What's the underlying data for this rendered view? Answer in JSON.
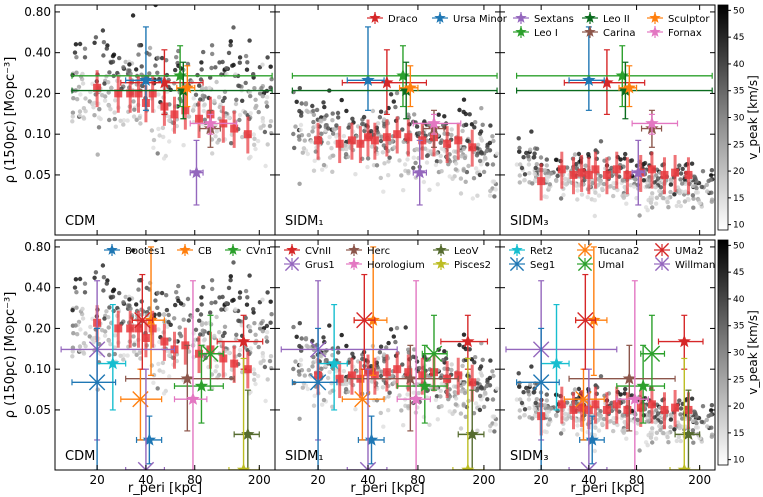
{
  "chart_data": {
    "type": "scatter",
    "y_axis": {
      "label": "ρ (150pc) [M⊙pc⁻³]",
      "log_range": [
        0.018,
        0.9
      ],
      "ticks": [
        0.05,
        0.1,
        0.2,
        0.4,
        0.8
      ],
      "tick_labels": [
        "0.05",
        "0.10",
        "0.20",
        "0.40",
        "0.80"
      ]
    },
    "x_axis": {
      "label": "r_peri [kpc]",
      "log_range": [
        11,
        250
      ],
      "ticks": [
        20,
        40,
        80,
        200
      ],
      "tick_labels": [
        "20",
        "40",
        "80",
        "200"
      ]
    },
    "colorbar": {
      "label": "v_peak [km/s]",
      "range": [
        9,
        51
      ],
      "ticks": [
        10,
        15,
        20,
        25,
        30,
        35,
        40,
        45,
        50
      ],
      "tick_labels": [
        "10",
        "15",
        "20",
        "25",
        "30",
        "35",
        "40",
        "45",
        "50"
      ]
    },
    "panel_titles": [
      "CDM",
      "SIDM₁",
      "SIDM₃",
      "CDM",
      "SIDM₁",
      "SIDM₃"
    ],
    "classical_dwarfs": [
      {
        "name": "Draco",
        "color": "#d62728",
        "marker": "star",
        "rperi": 52,
        "rperi_lo": 28,
        "rperi_hi": 90,
        "rho": {
          "CDM": 0.24,
          "SIDM1": 0.24,
          "SIDM3": 0.24
        },
        "rho_lo": 0.14,
        "rho_hi": 0.42
      },
      {
        "name": "Ursa Minor",
        "color": "#1f77b4",
        "marker": "star",
        "rperi": 40,
        "rperi_lo": 30,
        "rperi_hi": 50,
        "rho": {
          "CDM": 0.25,
          "SIDM1": 0.25,
          "SIDM3": 0.25
        },
        "rho_lo": 0.15,
        "rho_hi": 0.62
      },
      {
        "name": "Sextans",
        "color": "#9467bd",
        "marker": "star",
        "rperi": 82,
        "rperi_lo": 75,
        "rperi_hi": 90,
        "rho": {
          "CDM": 0.052,
          "SIDM1": 0.052,
          "SIDM3": 0.052
        },
        "rho_lo": 0.03,
        "rho_hi": 0.09
      },
      {
        "name": "Leo I",
        "color": "#2ca02c",
        "marker": "star",
        "rperi": 65,
        "rperi_lo": 14,
        "rperi_hi": 240,
        "rho": {
          "CDM": 0.27,
          "SIDM1": 0.27,
          "SIDM3": 0.27
        },
        "rho_lo": 0.16,
        "rho_hi": 0.45
      },
      {
        "name": "Leo II",
        "color": "#0a6b1e",
        "marker": "star",
        "rperi": 68,
        "rperi_lo": 14,
        "rperi_hi": 240,
        "rho": {
          "CDM": 0.21,
          "SIDM1": 0.21,
          "SIDM3": 0.21
        },
        "rho_lo": 0.13,
        "rho_hi": 0.34
      },
      {
        "name": "Carina",
        "color": "#8c564b",
        "marker": "star",
        "rperi": 100,
        "rperi_lo": 86,
        "rperi_hi": 115,
        "rho": {
          "CDM": 0.11,
          "SIDM1": 0.11,
          "SIDM3": 0.11
        },
        "rho_lo": 0.08,
        "rho_hi": 0.15
      },
      {
        "name": "Sculptor",
        "color": "#ff7f0e",
        "marker": "star",
        "rperi": 72,
        "rperi_lo": 62,
        "rperi_hi": 80,
        "rho": {
          "CDM": 0.22,
          "SIDM1": 0.22,
          "SIDM3": 0.22
        },
        "rho_lo": 0.16,
        "rho_hi": 0.32
      },
      {
        "name": "Fornax",
        "color": "#e377c2",
        "marker": "star",
        "rperi": 100,
        "rperi_lo": 75,
        "rperi_hi": 145,
        "rho": {
          "CDM": 0.12,
          "SIDM1": 0.12,
          "SIDM3": 0.12
        },
        "rho_lo": 0.1,
        "rho_hi": 0.14
      }
    ],
    "ultrafaint_dwarfs": [
      {
        "name": "Bootes1",
        "color": "#1f77b4",
        "marker": "star",
        "rperi": 42,
        "rperi_lo": 35,
        "rperi_hi": 50,
        "rho": 0.03,
        "rho_lo": 0.02,
        "rho_hi": 0.045
      },
      {
        "name": "CB",
        "color": "#ff7f0e",
        "marker": "star",
        "rperi": 43,
        "rperi_lo": 33,
        "rperi_hi": 52,
        "rho": 0.23,
        "rho_lo": 0.09,
        "rho_hi": 0.8
      },
      {
        "name": "CVn1",
        "color": "#2ca02c",
        "marker": "star",
        "rperi": 88,
        "rperi_lo": 60,
        "rperi_hi": 120,
        "rho": 0.075,
        "rho_lo": 0.04,
        "rho_hi": 0.15
      },
      {
        "name": "CVnII",
        "color": "#d62728",
        "marker": "star",
        "rperi": 160,
        "rperi_lo": 110,
        "rperi_hi": 210,
        "rho": 0.16,
        "rho_lo": 0.1,
        "rho_hi": 0.25
      },
      {
        "name": "Grus1",
        "color": "#9467bd",
        "marker": "cross",
        "rperi": 20,
        "rperi_lo": 12,
        "rperi_hi": 60,
        "rho": 0.14,
        "rho_lo": 0.03,
        "rho_hi": 0.45
      },
      {
        "name": "Herc",
        "color": "#8c564b",
        "marker": "star",
        "rperi": 72,
        "rperi_lo": 30,
        "rperi_hi": 140,
        "rho": 0.085,
        "rho_lo": 0.035,
        "rho_hi": 0.15
      },
      {
        "name": "Horologium",
        "color": "#e377c2",
        "marker": "star",
        "rperi": 78,
        "rperi_lo": 60,
        "rperi_hi": 95,
        "rho": 0.06,
        "rho_lo": 0.018,
        "rho_hi": 0.45
      },
      {
        "name": "LeoV",
        "color": "#556b2f",
        "marker": "star",
        "rperi": 170,
        "rperi_lo": 140,
        "rperi_hi": 200,
        "rho": 0.033,
        "rho_lo": 0.018,
        "rho_hi": 0.07
      },
      {
        "name": "Pisces2",
        "color": "#bcbd22",
        "marker": "star",
        "rperi": 160,
        "rperi_lo": 130,
        "rperi_hi": 200,
        "rho": 0.018,
        "rho_lo": 0.018,
        "rho_hi": 0.12
      },
      {
        "name": "Ret2",
        "color": "#17becf",
        "marker": "star",
        "rperi": 25,
        "rperi_lo": 20,
        "rperi_hi": 30,
        "rho": 0.11,
        "rho_lo": 0.05,
        "rho_hi": 0.3
      },
      {
        "name": "Seg1",
        "color": "#1f77b4",
        "marker": "cross",
        "rperi": 20,
        "rperi_lo": 14,
        "rperi_hi": 26,
        "rho": 0.08,
        "rho_lo": 0.018,
        "rho_hi": 0.2
      },
      {
        "name": "Tucana2",
        "color": "#ff7f0e",
        "marker": "cross",
        "rperi": 37,
        "rperi_lo": 28,
        "rperi_hi": 50,
        "rho": 0.06,
        "rho_lo": 0.03,
        "rho_hi": 0.1
      },
      {
        "name": "UmaI",
        "color": "#2ca02c",
        "marker": "cross",
        "rperi": 100,
        "rperi_lo": 85,
        "rperi_hi": 120,
        "rho": 0.13,
        "rho_lo": 0.07,
        "rho_hi": 0.25
      },
      {
        "name": "UMa2",
        "color": "#d62728",
        "marker": "cross",
        "rperi": 38,
        "rperi_lo": 33,
        "rperi_hi": 44,
        "rho": 0.23,
        "rho_lo": 0.1,
        "rho_hi": 0.5
      },
      {
        "name": "Willman",
        "color": "#9467bd",
        "marker": "cross",
        "rperi": 40,
        "rperi_lo": 30,
        "rperi_hi": 52,
        "rho": 0.018,
        "rho_lo": 0.018,
        "rho_hi": 0.1
      }
    ],
    "median_binned": {
      "CDM": [
        {
          "x": 20,
          "y": 0.22
        },
        {
          "x": 27,
          "y": 0.2
        },
        {
          "x": 32,
          "y": 0.2
        },
        {
          "x": 36,
          "y": 0.2
        },
        {
          "x": 40,
          "y": 0.17
        },
        {
          "x": 44,
          "y": 0.2
        },
        {
          "x": 52,
          "y": 0.16
        },
        {
          "x": 60,
          "y": 0.14
        },
        {
          "x": 70,
          "y": 0.15
        },
        {
          "x": 85,
          "y": 0.13
        },
        {
          "x": 100,
          "y": 0.14
        },
        {
          "x": 120,
          "y": 0.12
        },
        {
          "x": 140,
          "y": 0.11
        },
        {
          "x": 170,
          "y": 0.1
        }
      ],
      "SIDM1": [
        {
          "x": 20,
          "y": 0.09
        },
        {
          "x": 27,
          "y": 0.085
        },
        {
          "x": 32,
          "y": 0.09
        },
        {
          "x": 36,
          "y": 0.085
        },
        {
          "x": 40,
          "y": 0.095
        },
        {
          "x": 44,
          "y": 0.09
        },
        {
          "x": 52,
          "y": 0.095
        },
        {
          "x": 60,
          "y": 0.1
        },
        {
          "x": 70,
          "y": 0.095
        },
        {
          "x": 85,
          "y": 0.09
        },
        {
          "x": 100,
          "y": 0.095
        },
        {
          "x": 120,
          "y": 0.085
        },
        {
          "x": 140,
          "y": 0.09
        },
        {
          "x": 170,
          "y": 0.08
        }
      ],
      "SIDM3": [
        {
          "x": 20,
          "y": 0.045
        },
        {
          "x": 27,
          "y": 0.055
        },
        {
          "x": 32,
          "y": 0.05
        },
        {
          "x": 36,
          "y": 0.052
        },
        {
          "x": 40,
          "y": 0.05
        },
        {
          "x": 44,
          "y": 0.055
        },
        {
          "x": 52,
          "y": 0.05
        },
        {
          "x": 60,
          "y": 0.055
        },
        {
          "x": 70,
          "y": 0.05
        },
        {
          "x": 85,
          "y": 0.052
        },
        {
          "x": 100,
          "y": 0.055
        },
        {
          "x": 120,
          "y": 0.05
        },
        {
          "x": 140,
          "y": 0.052
        },
        {
          "x": 170,
          "y": 0.05
        }
      ]
    },
    "median_color": "#e8383d"
  }
}
